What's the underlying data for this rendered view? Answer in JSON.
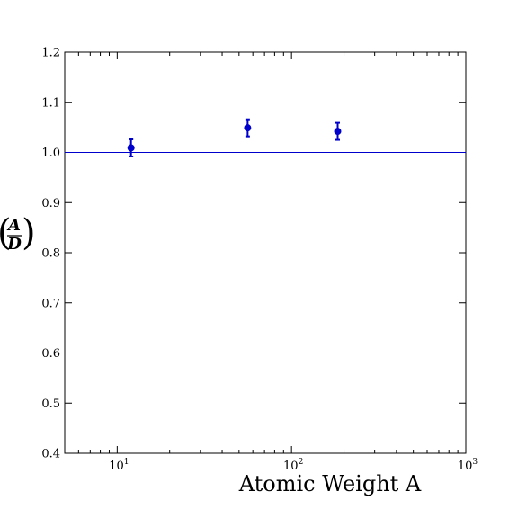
{
  "chart_data": {
    "type": "scatter",
    "xlabel": "Atomic Weight A",
    "ylabel": {
      "numerator": "A",
      "denominator": "D"
    },
    "x_scale": "log",
    "xlim": [
      5,
      1000
    ],
    "ylim": [
      0.4,
      1.2
    ],
    "x_ticks": [
      {
        "value": 10,
        "label_base": "10",
        "label_exp": "1"
      },
      {
        "value": 100,
        "label_base": "10",
        "label_exp": "2"
      },
      {
        "value": 1000,
        "label_base": "10",
        "label_exp": "3"
      }
    ],
    "y_ticks": [
      {
        "value": 0.4,
        "label": "0.4"
      },
      {
        "value": 0.5,
        "label": "0.5"
      },
      {
        "value": 0.6,
        "label": "0.6"
      },
      {
        "value": 0.7,
        "label": "0.7"
      },
      {
        "value": 0.8,
        "label": "0.8"
      },
      {
        "value": 0.9,
        "label": "0.9"
      },
      {
        "value": 1.0,
        "label": "1.0"
      },
      {
        "value": 1.1,
        "label": "1.1"
      },
      {
        "value": 1.2,
        "label": "1.2"
      }
    ],
    "reference_line": {
      "y": 1.0,
      "color": "#0000cc"
    },
    "points": [
      {
        "x": 12,
        "y": 1.009,
        "yerr": 0.017
      },
      {
        "x": 56,
        "y": 1.049,
        "yerr": 0.017
      },
      {
        "x": 184,
        "y": 1.042,
        "yerr": 0.017
      }
    ],
    "grid": false,
    "point_color": "#0000cc"
  }
}
